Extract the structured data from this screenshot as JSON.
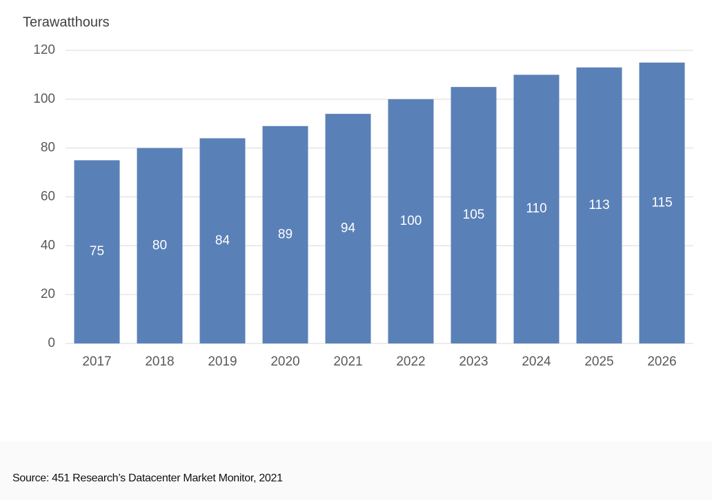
{
  "chart_data": {
    "type": "bar",
    "y_axis_label": "Terawatthours",
    "categories": [
      "2017",
      "2018",
      "2019",
      "2020",
      "2021",
      "2022",
      "2023",
      "2024",
      "2025",
      "2026"
    ],
    "values": [
      75,
      80,
      84,
      89,
      94,
      100,
      105,
      110,
      113,
      115
    ],
    "color": "#5a80b8",
    "ylim": [
      0,
      120
    ],
    "yticks": [
      0,
      20,
      40,
      60,
      80,
      100,
      120
    ],
    "grid": true
  },
  "source": "Source: 451 Research’s Datacenter Market Monitor, 2021"
}
